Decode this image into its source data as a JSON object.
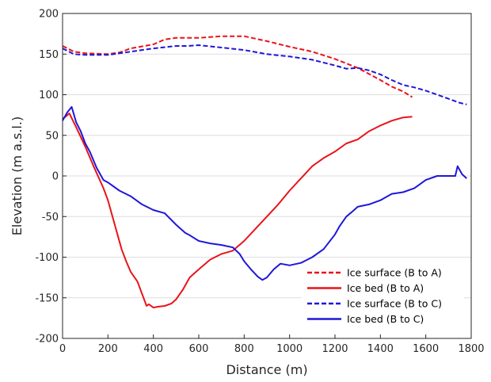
{
  "chart_data": {
    "type": "line",
    "xlabel": "Distance (m)",
    "ylabel": "Elevation (m a.s.l.)",
    "xlim": [
      0,
      1800
    ],
    "ylim": [
      -200,
      200
    ],
    "x_ticks": [
      0,
      200,
      400,
      600,
      800,
      1000,
      1200,
      1400,
      1600,
      1800
    ],
    "y_ticks": [
      -200,
      -150,
      -100,
      -50,
      0,
      50,
      100,
      150,
      200
    ],
    "grid": "horizontal",
    "legend_position": "bottom-right",
    "series": [
      {
        "name": "Ice surface (B to A)",
        "color": "#e8141b",
        "style": "dashed",
        "x": [
          0,
          50,
          100,
          200,
          250,
          300,
          400,
          450,
          500,
          600,
          700,
          800,
          900,
          1000,
          1100,
          1200,
          1300,
          1400,
          1450,
          1500,
          1540
        ],
        "y": [
          160,
          153,
          151,
          150,
          152,
          157,
          162,
          168,
          170,
          170,
          172,
          172,
          166,
          159,
          153,
          144,
          133,
          118,
          110,
          104,
          97
        ]
      },
      {
        "name": "Ice bed (B to A)",
        "color": "#e8141b",
        "style": "solid",
        "x": [
          0,
          30,
          60,
          100,
          140,
          180,
          200,
          230,
          260,
          280,
          300,
          330,
          350,
          370,
          380,
          400,
          420,
          450,
          480,
          500,
          530,
          560,
          600,
          650,
          700,
          750,
          800,
          850,
          900,
          950,
          1000,
          1050,
          1100,
          1150,
          1200,
          1250,
          1300,
          1350,
          1400,
          1450,
          1500,
          1540
        ],
        "y": [
          70,
          77,
          60,
          36,
          10,
          -15,
          -30,
          -60,
          -90,
          -105,
          -118,
          -130,
          -145,
          -160,
          -158,
          -162,
          -161,
          -160,
          -157,
          -152,
          -140,
          -125,
          -115,
          -103,
          -96,
          -92,
          -80,
          -65,
          -50,
          -35,
          -18,
          -3,
          12,
          22,
          30,
          40,
          45,
          55,
          62,
          68,
          72,
          73
        ]
      },
      {
        "name": "Ice surface (B to C)",
        "color": "#1f17d8",
        "style": "dashed",
        "x": [
          0,
          50,
          100,
          200,
          300,
          400,
          500,
          550,
          600,
          700,
          800,
          900,
          1000,
          1100,
          1200,
          1250,
          1300,
          1350,
          1400,
          1450,
          1500,
          1550,
          1600,
          1650,
          1700,
          1750,
          1780
        ],
        "y": [
          157,
          150,
          149,
          149,
          153,
          157,
          160,
          160,
          161,
          158,
          155,
          150,
          147,
          143,
          136,
          132,
          133,
          130,
          125,
          118,
          112,
          109,
          105,
          100,
          95,
          90,
          88
        ]
      },
      {
        "name": "Ice bed (B to C)",
        "color": "#1f17d8",
        "style": "solid",
        "x": [
          0,
          20,
          40,
          60,
          80,
          100,
          120,
          150,
          180,
          200,
          250,
          300,
          350,
          400,
          450,
          500,
          540,
          560,
          600,
          650,
          700,
          750,
          780,
          800,
          830,
          860,
          880,
          900,
          930,
          960,
          1000,
          1050,
          1100,
          1150,
          1200,
          1220,
          1250,
          1280,
          1300,
          1350,
          1400,
          1450,
          1500,
          1550,
          1600,
          1650,
          1700,
          1730,
          1740,
          1760,
          1780
        ],
        "y": [
          68,
          78,
          85,
          66,
          55,
          40,
          30,
          10,
          -5,
          -8,
          -18,
          -25,
          -35,
          -42,
          -46,
          -60,
          -70,
          -73,
          -80,
          -83,
          -85,
          -88,
          -96,
          -105,
          -115,
          -124,
          -128,
          -125,
          -115,
          -108,
          -110,
          -107,
          -100,
          -90,
          -72,
          -62,
          -50,
          -43,
          -38,
          -35,
          -30,
          -22,
          -20,
          -15,
          -5,
          0,
          0,
          0,
          12,
          2,
          -3
        ]
      }
    ]
  }
}
